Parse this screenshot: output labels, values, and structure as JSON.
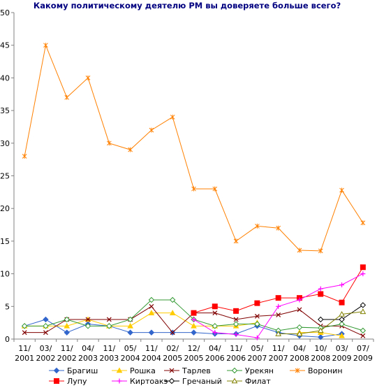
{
  "chart_data": {
    "type": "line",
    "title": "Какому политическому деятелю РМ вы доверяете больше всего?",
    "categories": [
      [
        "11/",
        "2001"
      ],
      [
        "03/",
        "2002"
      ],
      [
        "11/",
        "2002"
      ],
      [
        "04/",
        "2003"
      ],
      [
        "11/",
        "2003"
      ],
      [
        "05/",
        "2004"
      ],
      [
        "11/",
        "2004"
      ],
      [
        "02/",
        "2005"
      ],
      [
        "12/",
        "2005"
      ],
      [
        "04/",
        "2006"
      ],
      [
        "11/",
        "2006"
      ],
      [
        "05/",
        "2007"
      ],
      [
        "11/",
        "2007"
      ],
      [
        "04/",
        "2008"
      ],
      [
        "10/",
        "2008"
      ],
      [
        "03/",
        "2009"
      ],
      [
        "07/",
        "2009"
      ]
    ],
    "ylim": [
      0,
      50
    ],
    "yticks": [
      0,
      5,
      10,
      15,
      20,
      25,
      30,
      35,
      40,
      45,
      50
    ],
    "grid": false,
    "legend_position": "bottom",
    "series": [
      {
        "name": "Брагиш",
        "color": "#3366CC",
        "marker": "diamond",
        "values": [
          2,
          3,
          1,
          2.3,
          2,
          1,
          1,
          1,
          1,
          0.8,
          0.8,
          2,
          1,
          0.5,
          0.3,
          0.8,
          null
        ]
      },
      {
        "name": "Рошка",
        "color": "#FFCC00",
        "marker": "triangle",
        "values": [
          2,
          2,
          2,
          3,
          2,
          2,
          4,
          4,
          2,
          2,
          2,
          2.5,
          null,
          1,
          1,
          0.5,
          null
        ]
      },
      {
        "name": "Тарлев",
        "color": "#800000",
        "marker": "x",
        "values": [
          1,
          1,
          3,
          3,
          3,
          3,
          5,
          1,
          4,
          4,
          3,
          3.5,
          3.7,
          4.5,
          2,
          2,
          0.5
        ]
      },
      {
        "name": "Урекян",
        "color": "#339933",
        "marker": "diamond-open",
        "values": [
          2,
          2,
          3,
          2,
          2,
          3,
          6,
          6,
          3,
          2,
          2.3,
          2.3,
          1.3,
          1.8,
          1.7,
          2.3,
          1.3
        ]
      },
      {
        "name": "Воронин",
        "color": "#FF8000",
        "marker": "asterisk",
        "values": [
          28,
          45,
          37,
          40,
          30,
          29,
          32,
          34,
          23,
          23,
          15,
          17.3,
          17,
          13.6,
          13.5,
          22.8,
          17.8
        ]
      },
      {
        "name": "Лупу",
        "color": "#FF0000",
        "marker": "square",
        "values": [
          null,
          null,
          null,
          null,
          null,
          null,
          null,
          null,
          4,
          5,
          4.3,
          5.5,
          6.3,
          6.3,
          6.9,
          5.6,
          11
        ]
      },
      {
        "name": "Киртоакэ",
        "color": "#FF00FF",
        "marker": "plus",
        "values": [
          null,
          null,
          null,
          null,
          null,
          null,
          null,
          null,
          3,
          1,
          0.7,
          0.2,
          5,
          6,
          7.7,
          8.3,
          10
        ]
      },
      {
        "name": "Гречаный",
        "color": "#000000",
        "marker": "diamond-open",
        "values": [
          null,
          null,
          null,
          null,
          null,
          null,
          null,
          null,
          null,
          null,
          null,
          null,
          null,
          null,
          3,
          3,
          5.2
        ]
      },
      {
        "name": "Филат",
        "color": "#808000",
        "marker": "triangle-open",
        "values": [
          null,
          null,
          null,
          null,
          null,
          null,
          null,
          null,
          null,
          null,
          null,
          null,
          0.8,
          0.8,
          1.3,
          3.8,
          4.2
        ]
      }
    ]
  }
}
